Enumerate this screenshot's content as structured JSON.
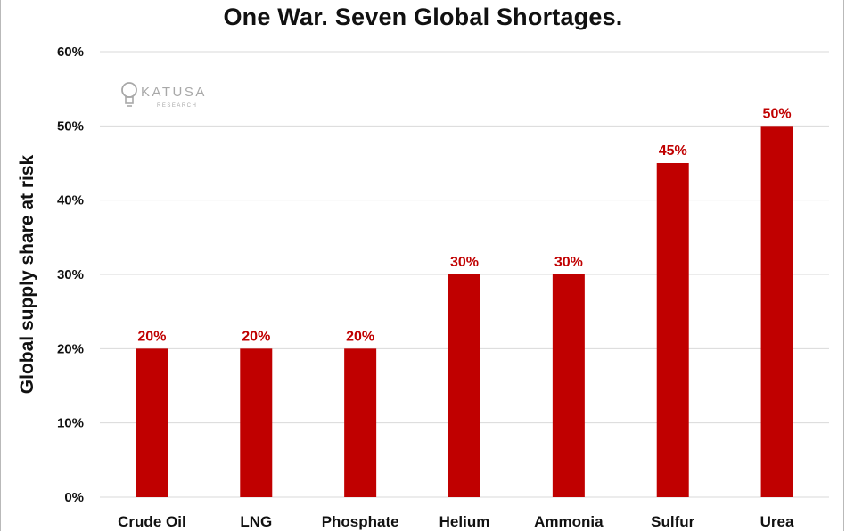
{
  "chart_data": {
    "type": "bar",
    "title": "One War. Seven Global Shortages.",
    "xlabel": "",
    "ylabel": "Global supply share at risk",
    "categories": [
      "Crude Oil",
      "LNG",
      "Phosphate",
      "Helium",
      "Ammonia",
      "Sulfur",
      "Urea"
    ],
    "values": [
      20,
      20,
      20,
      30,
      30,
      45,
      50
    ],
    "value_labels": [
      "20%",
      "20%",
      "20%",
      "30%",
      "30%",
      "45%",
      "50%"
    ],
    "ylim": [
      0,
      60
    ],
    "yticks": [
      0,
      10,
      20,
      30,
      40,
      50,
      60
    ],
    "ytick_labels": [
      "0%",
      "10%",
      "20%",
      "30%",
      "40%",
      "50%",
      "60%"
    ],
    "grid": "horizontal",
    "bar_color": "#c00000",
    "grid_color": "#d9d9d9"
  },
  "watermark": {
    "brand": "KATUSA",
    "sub": "RESEARCH"
  }
}
